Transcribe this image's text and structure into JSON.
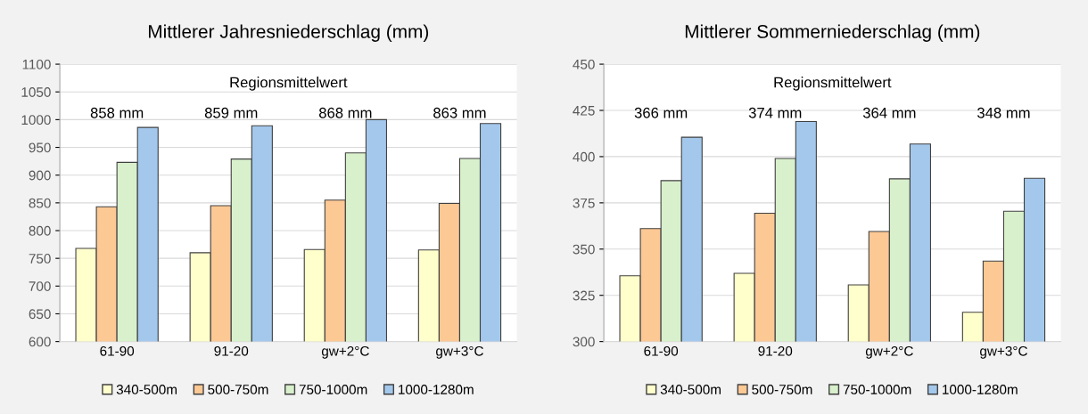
{
  "chart_data": [
    {
      "type": "bar",
      "title": "Mittlerer Jahresniederschlag (mm)",
      "categories": [
        "61-90",
        "91-20",
        "gw+2°C",
        "gw+3°C"
      ],
      "series": [
        {
          "name": "340-500m",
          "color": "#ffffcc",
          "values": [
            768,
            760,
            766,
            765
          ]
        },
        {
          "name": "500-750m",
          "color": "#fcc894",
          "values": [
            843,
            845,
            855,
            849
          ]
        },
        {
          "name": "750-1000m",
          "color": "#d8f0cc",
          "values": [
            923,
            929,
            940,
            930
          ]
        },
        {
          "name": "1000-1280m",
          "color": "#a4c8ec",
          "values": [
            986,
            989,
            1000,
            993
          ]
        }
      ],
      "ylim": [
        600,
        1100
      ],
      "yticks": [
        600,
        650,
        700,
        750,
        800,
        850,
        900,
        950,
        1000,
        1050,
        1100
      ],
      "grid": "y",
      "legend": "bottom",
      "annotations": [
        "Regionsmittelwert",
        "858 mm",
        "859 mm",
        "868 mm",
        "863 mm"
      ]
    },
    {
      "type": "bar",
      "title": "Mittlerer Sommerniederschlag (mm)",
      "categories": [
        "61-90",
        "91-20",
        "gw+2°C",
        "gw+3°C"
      ],
      "series": [
        {
          "name": "340-500m",
          "color": "#ffffcc",
          "values": [
            335.6,
            336.9,
            330.6,
            315.8
          ]
        },
        {
          "name": "500-750m",
          "color": "#fcc894",
          "values": [
            361.1,
            369.4,
            359.5,
            343.5
          ]
        },
        {
          "name": "750-1000m",
          "color": "#d8f0cc",
          "values": [
            387,
            399,
            388,
            370.5
          ]
        },
        {
          "name": "1000-1280m",
          "color": "#a4c8ec",
          "values": [
            410.5,
            419,
            406.8,
            388.3
          ]
        }
      ],
      "ylim": [
        300,
        450
      ],
      "yticks": [
        300,
        325,
        350,
        375,
        400,
        425,
        450
      ],
      "grid": "y",
      "legend": "bottom",
      "annotations": [
        "Regionsmittelwert",
        "366 mm",
        "374 mm",
        "364 mm",
        "348 mm"
      ]
    }
  ]
}
